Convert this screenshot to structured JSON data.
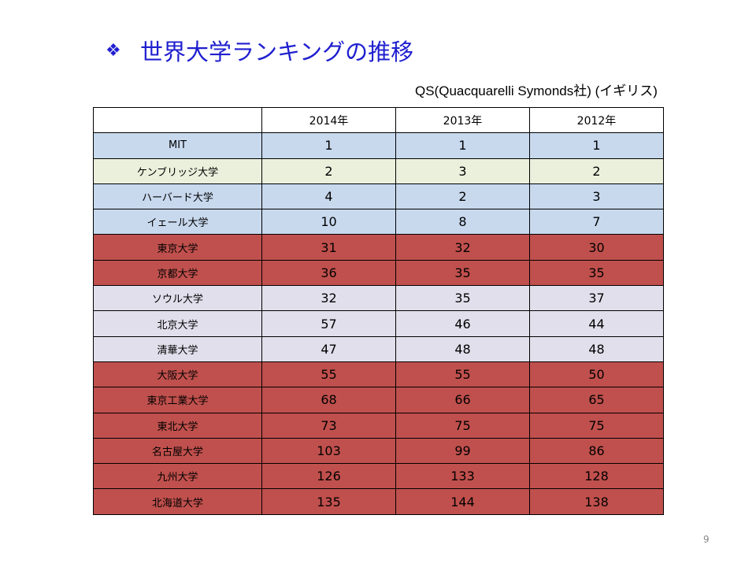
{
  "slide": {
    "bullet": "❖",
    "title": "世界大学ランキングの推移",
    "source": "QS(Quacquarelli Symonds社) (イギリス)",
    "page_number": "9"
  },
  "table": {
    "headers": [
      "",
      "2014年",
      "2013年",
      "2012年"
    ],
    "rows": [
      {
        "name": "MIT",
        "y2014": "1",
        "y2013": "1",
        "y2012": "1",
        "color": "#c8d9ee"
      },
      {
        "name": "ケンブリッジ大学",
        "y2014": "2",
        "y2013": "3",
        "y2012": "2",
        "color": "#ebf0dc"
      },
      {
        "name": "ハーバード大学",
        "y2014": "4",
        "y2013": "2",
        "y2012": "3",
        "color": "#c8d9ee"
      },
      {
        "name": "イェール大学",
        "y2014": "10",
        "y2013": "8",
        "y2012": "7",
        "color": "#c8d9ee"
      },
      {
        "name": "東京大学",
        "y2014": "31",
        "y2013": "32",
        "y2012": "30",
        "color": "#c0504d"
      },
      {
        "name": "京都大学",
        "y2014": "36",
        "y2013": "35",
        "y2012": "35",
        "color": "#c0504d"
      },
      {
        "name": "ソウル大学",
        "y2014": "32",
        "y2013": "35",
        "y2012": "37",
        "color": "#e2dfec"
      },
      {
        "name": "北京大学",
        "y2014": "57",
        "y2013": "46",
        "y2012": "44",
        "color": "#e2dfec"
      },
      {
        "name": "清華大学",
        "y2014": "47",
        "y2013": "48",
        "y2012": "48",
        "color": "#e2dfec"
      },
      {
        "name": "大阪大学",
        "y2014": "55",
        "y2013": "55",
        "y2012": "50",
        "color": "#c0504d"
      },
      {
        "name": "東京工業大学",
        "y2014": "68",
        "y2013": "66",
        "y2012": "65",
        "color": "#c0504d"
      },
      {
        "name": "東北大学",
        "y2014": "73",
        "y2013": "75",
        "y2012": "75",
        "color": "#c0504d"
      },
      {
        "name": "名古屋大学",
        "y2014": "103",
        "y2013": "99",
        "y2012": "86",
        "color": "#c0504d"
      },
      {
        "name": "九州大学",
        "y2014": "126",
        "y2013": "133",
        "y2012": "128",
        "color": "#c0504d"
      },
      {
        "name": "北海道大学",
        "y2014": "135",
        "y2013": "144",
        "y2012": "138",
        "color": "#c0504d"
      }
    ]
  }
}
